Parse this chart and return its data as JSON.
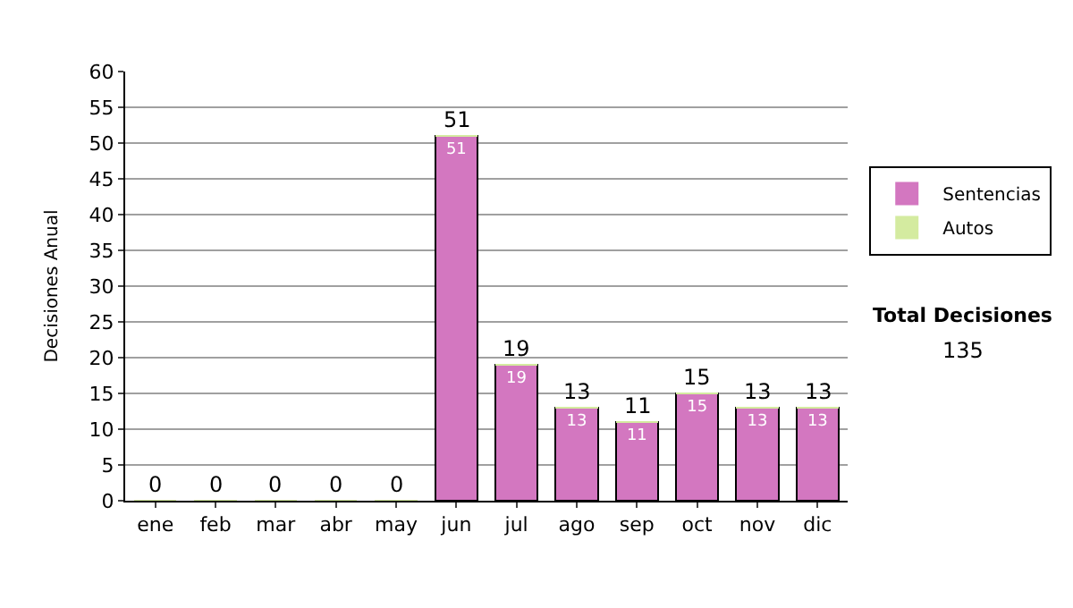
{
  "chart_data": {
    "type": "bar",
    "stacked": true,
    "ylabel": "Decisiones Anual",
    "categories": [
      "ene",
      "feb",
      "mar",
      "abr",
      "may",
      "jun",
      "jul",
      "ago",
      "sep",
      "oct",
      "nov",
      "dic"
    ],
    "series": [
      {
        "name": "Sentencias",
        "color": "#d377c0",
        "values": [
          0,
          0,
          0,
          0,
          0,
          51,
          19,
          13,
          11,
          15,
          13,
          13
        ],
        "value_labels": [
          null,
          null,
          null,
          null,
          null,
          "51",
          "19",
          "13",
          "11",
          "15",
          "13",
          "13"
        ]
      },
      {
        "name": "Autos",
        "color": "#d4eba0",
        "values": [
          0,
          0,
          0,
          0,
          0,
          0,
          0,
          0,
          0,
          0,
          0,
          0
        ]
      }
    ],
    "totals": [
      "0",
      "0",
      "0",
      "0",
      "0",
      "51",
      "19",
      "13",
      "11",
      "15",
      "13",
      "13"
    ],
    "ylim": [
      0,
      60
    ],
    "yticks": [
      0,
      5,
      10,
      15,
      20,
      25,
      30,
      35,
      40,
      45,
      50,
      55,
      60
    ],
    "grid": "y",
    "legend": "right",
    "annotations": [
      "Total Decisiones",
      "135"
    ]
  }
}
